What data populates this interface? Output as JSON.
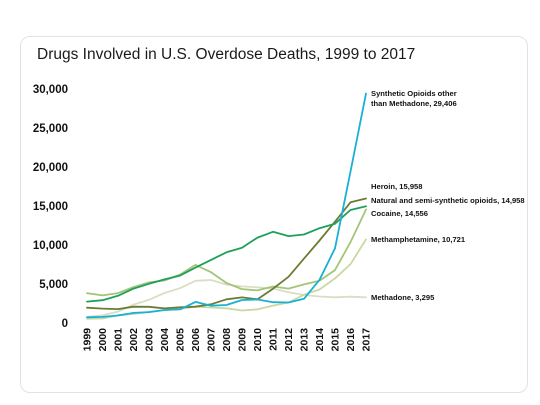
{
  "chart_data": {
    "type": "line",
    "title": "Drugs Involved in U.S. Overdose Deaths, 1999 to 2017",
    "xlabel": "",
    "ylabel": "",
    "x": [
      "1999",
      "2000",
      "2001",
      "2002",
      "2003",
      "2004",
      "2005",
      "2006",
      "2007",
      "2008",
      "2009",
      "2010",
      "2011",
      "2012",
      "2013",
      "2014",
      "2015",
      "2016",
      "2017"
    ],
    "ylim": [
      0,
      30000
    ],
    "yticks": [
      0,
      5000,
      10000,
      15000,
      20000,
      25000,
      30000
    ],
    "ytick_labels": [
      "0",
      "5,000",
      "10,000",
      "15,000",
      "20,000",
      "25,000",
      "30,000"
    ],
    "grid": false,
    "series": [
      {
        "name": "Synthetic Opioids other than Methadone",
        "label_lines": [
          "Synthetic Opioids other",
          "than Methadone, 29,406"
        ],
        "color": "#1ab0d6",
        "values": [
          730,
          782,
          957,
          1295,
          1400,
          1664,
          1742,
          2707,
          2213,
          2306,
          2946,
          3007,
          2666,
          2628,
          3105,
          5544,
          9580,
          19413,
          29406
        ]
      },
      {
        "name": "Heroin",
        "label_lines": [
          "Heroin, 15,958"
        ],
        "color": "#6b7c32",
        "values": [
          1960,
          1842,
          1779,
          2089,
          2080,
          1878,
          2009,
          2088,
          2399,
          3041,
          3278,
          3036,
          4397,
          5925,
          8257,
          10574,
          12989,
          15469,
          15958
        ]
      },
      {
        "name": "Natural and semi-synthetic opioids",
        "label_lines": [
          "Natural and semi-synthetic opioids, 14,958"
        ],
        "color": "#1fa05a",
        "values": [
          2749,
          2917,
          3484,
          4416,
          5020,
          5592,
          6071,
          7108,
          8095,
          9059,
          9658,
          10943,
          11693,
          11140,
          11346,
          12159,
          12727,
          14487,
          14958
        ]
      },
      {
        "name": "Cocaine",
        "label_lines": [
          "Cocaine, 14,556"
        ],
        "color": "#a4c577",
        "values": [
          3822,
          3544,
          3833,
          4599,
          5199,
          5443,
          6208,
          7448,
          6512,
          5129,
          4350,
          4183,
          4681,
          4404,
          4944,
          5415,
          6784,
          10375,
          14556
        ]
      },
      {
        "name": "Methamphetamine",
        "label_lines": [
          "Methamphetamine, 10,721"
        ],
        "color": "#c9d9a1",
        "values": [
          547,
          578,
          1000,
          1150,
          1409,
          1649,
          1800,
          2100,
          1986,
          1888,
          1601,
          1750,
          2226,
          2629,
          3627,
          4298,
          5716,
          7542,
          10721
        ]
      },
      {
        "name": "Methadone",
        "label_lines": [
          "Methadone, 3,295"
        ],
        "color": "#d8dfc4",
        "values": [
          784,
          988,
          1456,
          2358,
          2972,
          3845,
          4460,
          5406,
          5518,
          4924,
          4696,
          4577,
          4418,
          3932,
          3591,
          3400,
          3301,
          3373,
          3295
        ]
      }
    ]
  }
}
